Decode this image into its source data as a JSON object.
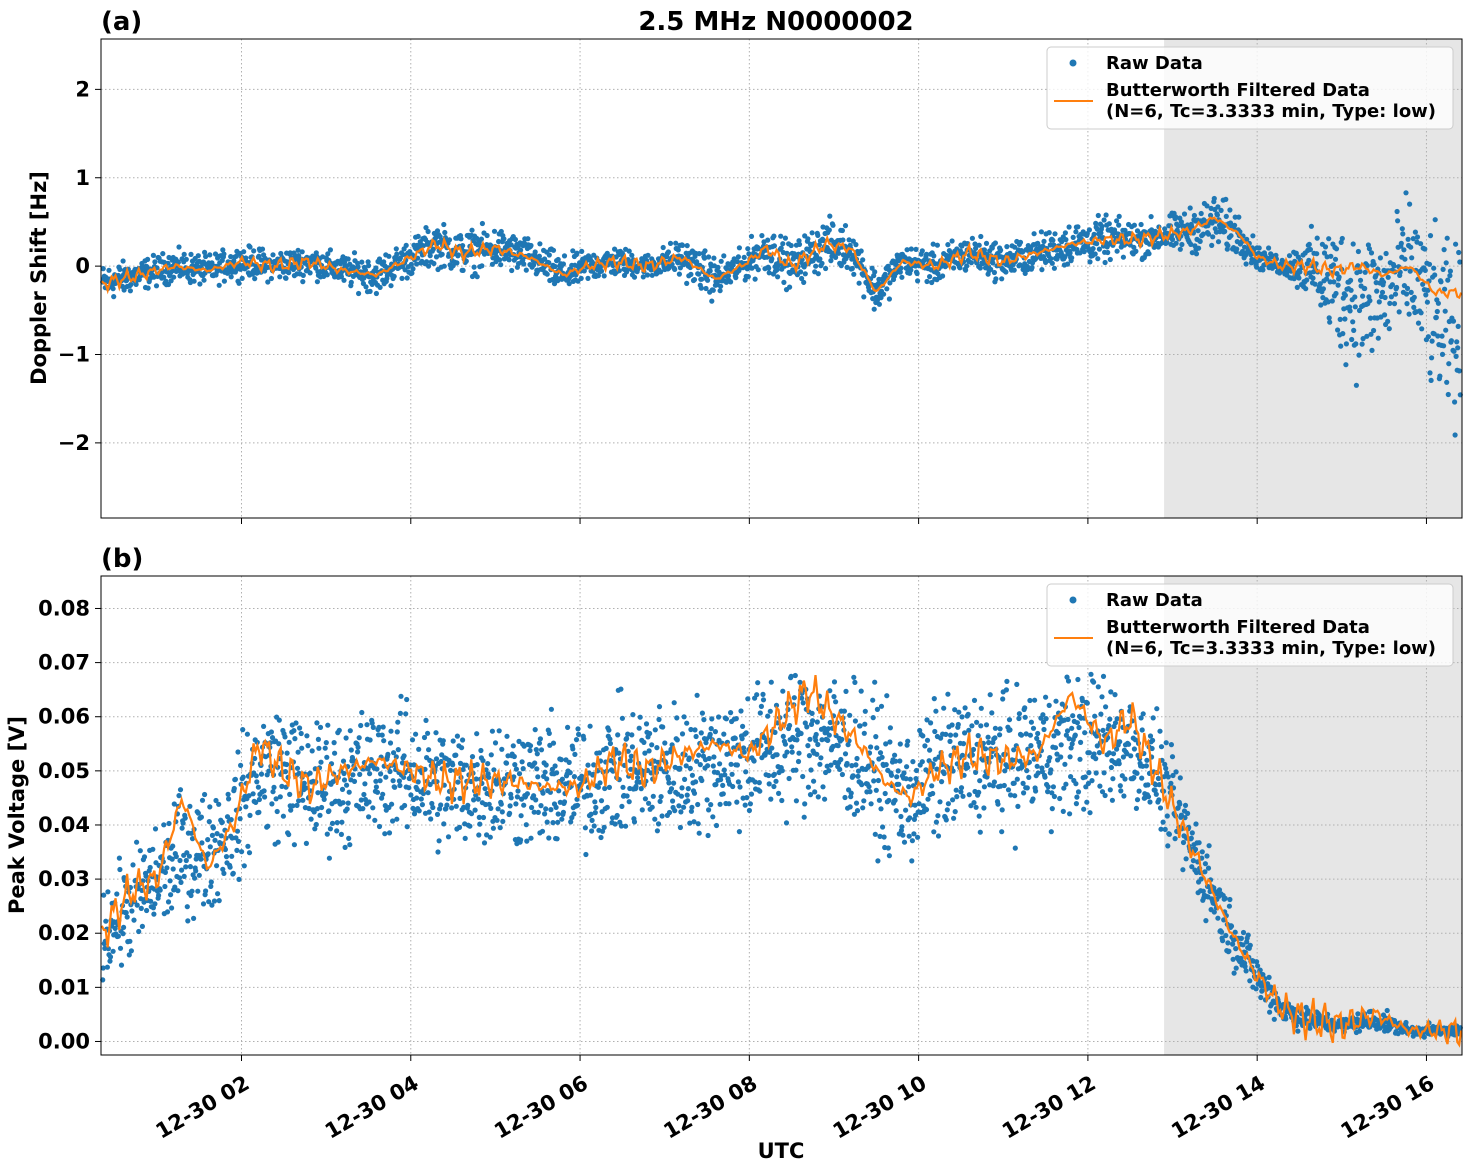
{
  "figure": {
    "title": "2.5 MHz N0000002",
    "xlabel": "UTC",
    "x_tick_labels": [
      "12-30 02",
      "12-30 04",
      "12-30 06",
      "12-30 08",
      "12-30 10",
      "12-30 12",
      "12-30 14",
      "12-30 16"
    ],
    "colors": {
      "raw": "#1f77b4",
      "filtered": "#ff7f0e",
      "shade": "#e6e6e6",
      "grid": "#b0b0b0"
    }
  },
  "chart_data": [
    {
      "type": "scatter",
      "panel_label": "(a)",
      "ylabel": "Doppler Shift [Hz]",
      "x_unit": "UTC hour of 12-30",
      "xlim": [
        0.34,
        16.42
      ],
      "ylim": [
        -2.85,
        2.57
      ],
      "y_ticks": [
        -2,
        -1,
        0,
        1,
        2
      ],
      "y_tick_labels": [
        "−2",
        "−1",
        "0",
        "1",
        "2"
      ],
      "grid": true,
      "legend_position": "top-right",
      "shaded_interval": [
        12.9,
        16.42
      ],
      "series": [
        {
          "name": "Raw Data",
          "marker": "dot",
          "x": [
            0.35,
            0.8,
            1.2,
            1.6,
            2.0,
            2.4,
            2.8,
            3.2,
            3.6,
            4.0,
            4.3,
            4.6,
            5.0,
            5.4,
            5.8,
            6.1,
            6.4,
            6.8,
            7.2,
            7.6,
            7.9,
            8.2,
            8.5,
            8.9,
            9.2,
            9.5,
            9.8,
            10.2,
            10.6,
            11.0,
            11.4,
            11.8,
            12.2,
            12.6,
            12.9,
            13.2,
            13.5,
            13.8,
            14.0,
            14.3,
            14.6,
            14.9,
            15.2,
            15.5,
            15.8,
            16.1,
            16.4
          ],
          "y": [
            -0.2,
            -0.1,
            0.0,
            -0.05,
            0.05,
            0.0,
            0.05,
            -0.05,
            -0.1,
            0.1,
            0.25,
            0.15,
            0.2,
            0.1,
            -0.1,
            0.0,
            0.05,
            0.0,
            0.1,
            -0.15,
            0.0,
            0.2,
            0.0,
            0.25,
            0.2,
            -0.3,
            0.05,
            0.0,
            0.15,
            0.05,
            0.15,
            0.25,
            0.3,
            0.3,
            0.35,
            0.4,
            0.5,
            0.35,
            0.1,
            0.0,
            0.0,
            -0.2,
            -0.4,
            -0.3,
            0.0,
            -0.6,
            -0.9
          ],
          "spread": [
            0.3,
            0.25,
            0.25,
            0.25,
            0.25,
            0.25,
            0.25,
            0.25,
            0.3,
            0.3,
            0.35,
            0.35,
            0.35,
            0.3,
            0.3,
            0.25,
            0.25,
            0.2,
            0.3,
            0.35,
            0.25,
            0.4,
            0.35,
            0.4,
            0.35,
            0.35,
            0.25,
            0.3,
            0.3,
            0.3,
            0.3,
            0.35,
            0.35,
            0.3,
            0.3,
            0.35,
            0.45,
            0.35,
            0.2,
            0.15,
            0.5,
            1.0,
            1.2,
            1.0,
            1.1,
            1.3,
            1.5
          ]
        },
        {
          "name": "Butterworth Filtered Data\n(N=6, Tc=3.3333 min, Type: low)",
          "legend_lines": [
            "Butterworth Filtered Data",
            "(N=6, Tc=3.3333 min, Type: low)"
          ],
          "marker": "line",
          "x": [
            0.35,
            0.8,
            1.2,
            1.6,
            2.0,
            2.4,
            2.8,
            3.2,
            3.6,
            4.0,
            4.3,
            4.6,
            5.0,
            5.4,
            5.8,
            6.1,
            6.4,
            6.8,
            7.2,
            7.6,
            7.9,
            8.2,
            8.5,
            8.9,
            9.2,
            9.5,
            9.8,
            10.2,
            10.6,
            11.0,
            11.4,
            11.8,
            12.2,
            12.6,
            12.9,
            13.2,
            13.5,
            13.8,
            14.0,
            14.3,
            14.6,
            14.9,
            15.2,
            15.5,
            15.8,
            16.1,
            16.4
          ],
          "y": [
            -0.2,
            -0.1,
            0.0,
            -0.05,
            0.05,
            0.0,
            0.05,
            -0.05,
            -0.1,
            0.1,
            0.25,
            0.15,
            0.2,
            0.1,
            -0.1,
            0.0,
            0.05,
            0.0,
            0.1,
            -0.15,
            0.0,
            0.2,
            0.0,
            0.25,
            0.2,
            -0.3,
            0.05,
            0.0,
            0.15,
            0.05,
            0.15,
            0.25,
            0.3,
            0.3,
            0.35,
            0.4,
            0.55,
            0.35,
            0.1,
            0.0,
            0.0,
            -0.05,
            0.0,
            -0.1,
            0.0,
            -0.3,
            -0.3
          ]
        }
      ]
    },
    {
      "type": "scatter",
      "panel_label": "(b)",
      "ylabel": "Peak Voltage [V]",
      "x_unit": "UTC hour of 12-30",
      "xlim": [
        0.34,
        16.42
      ],
      "ylim": [
        -0.0025,
        0.086
      ],
      "y_ticks": [
        0.0,
        0.01,
        0.02,
        0.03,
        0.04,
        0.05,
        0.06,
        0.07,
        0.08
      ],
      "y_tick_labels": [
        "0.00",
        "0.01",
        "0.02",
        "0.03",
        "0.04",
        "0.05",
        "0.06",
        "0.07",
        "0.08"
      ],
      "grid": true,
      "legend_position": "top-right",
      "shaded_interval": [
        12.9,
        16.42
      ],
      "series": [
        {
          "name": "Raw Data",
          "marker": "dot",
          "x": [
            0.35,
            0.7,
            1.0,
            1.3,
            1.6,
            1.9,
            2.2,
            2.5,
            2.8,
            3.2,
            3.6,
            4.0,
            4.4,
            4.8,
            5.2,
            5.6,
            6.0,
            6.4,
            6.8,
            7.2,
            7.6,
            8.0,
            8.4,
            8.7,
            9.0,
            9.3,
            9.6,
            9.9,
            10.2,
            10.6,
            11.0,
            11.4,
            11.8,
            12.2,
            12.5,
            12.8,
            13.1,
            13.4,
            13.7,
            14.0,
            14.3,
            14.6,
            15.0,
            15.4,
            15.8,
            16.1,
            16.4
          ],
          "y": [
            0.02,
            0.025,
            0.03,
            0.035,
            0.035,
            0.04,
            0.05,
            0.05,
            0.047,
            0.048,
            0.05,
            0.05,
            0.047,
            0.048,
            0.048,
            0.047,
            0.047,
            0.05,
            0.05,
            0.05,
            0.052,
            0.053,
            0.055,
            0.057,
            0.055,
            0.053,
            0.048,
            0.045,
            0.05,
            0.052,
            0.052,
            0.053,
            0.055,
            0.055,
            0.055,
            0.05,
            0.04,
            0.03,
            0.02,
            0.012,
            0.006,
            0.004,
            0.003,
            0.004,
            0.002,
            0.002,
            0.002
          ],
          "spread": [
            0.012,
            0.014,
            0.015,
            0.016,
            0.016,
            0.016,
            0.018,
            0.018,
            0.017,
            0.017,
            0.017,
            0.017,
            0.017,
            0.017,
            0.017,
            0.017,
            0.017,
            0.017,
            0.018,
            0.018,
            0.018,
            0.019,
            0.019,
            0.02,
            0.019,
            0.019,
            0.018,
            0.018,
            0.018,
            0.018,
            0.018,
            0.018,
            0.019,
            0.018,
            0.017,
            0.014,
            0.012,
            0.01,
            0.008,
            0.006,
            0.004,
            0.003,
            0.002,
            0.003,
            0.0015,
            0.0015,
            0.0015
          ]
        },
        {
          "name": "Butterworth Filtered Data\n(N=6, Tc=3.3333 min, Type: low)",
          "legend_lines": [
            "Butterworth Filtered Data",
            "(N=6, Tc=3.3333 min, Type: low)"
          ],
          "marker": "line",
          "x": [
            0.35,
            0.7,
            1.0,
            1.3,
            1.6,
            1.9,
            2.2,
            2.5,
            2.8,
            3.2,
            3.6,
            4.0,
            4.4,
            4.8,
            5.2,
            5.6,
            6.0,
            6.4,
            6.8,
            7.2,
            7.6,
            8.0,
            8.4,
            8.7,
            9.0,
            9.3,
            9.6,
            9.9,
            10.2,
            10.6,
            11.0,
            11.4,
            11.8,
            12.2,
            12.5,
            12.8,
            13.1,
            13.4,
            13.7,
            14.0,
            14.3,
            14.6,
            15.0,
            15.4,
            15.8,
            16.1,
            16.4
          ],
          "y": [
            0.02,
            0.028,
            0.03,
            0.045,
            0.032,
            0.04,
            0.055,
            0.05,
            0.047,
            0.05,
            0.052,
            0.05,
            0.048,
            0.048,
            0.048,
            0.047,
            0.047,
            0.052,
            0.05,
            0.053,
            0.055,
            0.053,
            0.06,
            0.065,
            0.06,
            0.055,
            0.048,
            0.045,
            0.05,
            0.053,
            0.052,
            0.053,
            0.064,
            0.055,
            0.06,
            0.05,
            0.04,
            0.03,
            0.02,
            0.012,
            0.006,
            0.004,
            0.003,
            0.005,
            0.002,
            0.002,
            0.002
          ]
        }
      ]
    }
  ]
}
